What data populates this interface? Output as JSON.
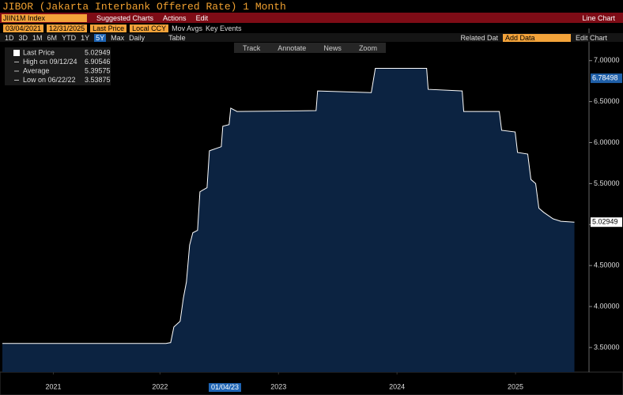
{
  "header": {
    "title": "JIBOR (Jakarta Interbank Offered Rate) 1 Month"
  },
  "toolbar": {
    "security": "JIIN1M Index",
    "suggested": "Suggested Charts",
    "actions": "Actions",
    "edit": "Edit",
    "chart_type": "Line Chart"
  },
  "settings": {
    "start": "03/04/2021",
    "end": "12/31/2025",
    "field": "Last Price",
    "currency": "Local CCY",
    "mov_avgs": "Mov Avgs",
    "key_events": "Key Events"
  },
  "periods": [
    "1D",
    "3D",
    "1M",
    "6M",
    "YTD",
    "1Y",
    "5Y",
    "Max"
  ],
  "controls": {
    "frequency": "Daily",
    "table": "Table",
    "related": "Related Dat",
    "add_data": "Add Data",
    "edit_chart": "Edit Chart"
  },
  "tools": [
    "Track",
    "Annotate",
    "News",
    "Zoom"
  ],
  "crosshair_label": "01/04/23",
  "chart_data": {
    "type": "area",
    "x": [
      2021.17,
      2022.55,
      2022.59,
      2022.617,
      2022.67,
      2022.697,
      2022.723,
      2022.75,
      2022.777,
      2022.817,
      2022.837,
      2022.897,
      2022.917,
      2023.017,
      2023.03,
      2023.083,
      2023.097,
      2023.15,
      2023.817,
      2023.83,
      2024.283,
      2024.317,
      2024.75,
      2024.763,
      2025.05,
      2025.063,
      2025.363,
      2025.383,
      2025.497,
      2025.517,
      2025.603,
      2025.63,
      2025.67,
      2025.697,
      2025.737,
      2025.817,
      2025.883,
      2025.997
    ],
    "series": [
      {
        "name": "Last Price",
        "color": "#ffffff",
        "fill": "#0c2341",
        "values": [
          3.55,
          3.55,
          3.56,
          3.75,
          3.82,
          4.1,
          4.3,
          4.75,
          4.9,
          4.93,
          5.4,
          5.45,
          5.9,
          5.95,
          6.2,
          6.22,
          6.42,
          6.38,
          6.39,
          6.63,
          6.61,
          6.90546,
          6.90546,
          6.65,
          6.63,
          6.38,
          6.38,
          6.15,
          6.13,
          5.88,
          5.86,
          5.55,
          5.5,
          5.2,
          5.15,
          5.07,
          5.04,
          5.02949
        ]
      }
    ],
    "last_value": 5.02949,
    "stats": [
      {
        "label": "High on 09/12/24",
        "value": 6.90546
      },
      {
        "label": "Average",
        "value": 5.39575
      },
      {
        "label": "Low on 06/22/22",
        "value": 3.53875
      }
    ],
    "axis_markers": [
      {
        "value": 6.78498,
        "color": "#1f5fa8"
      },
      {
        "value": 5.02949,
        "color": "#ffffff"
      }
    ],
    "xlim": [
      2021.17,
      2026.0
    ],
    "xticks": [
      {
        "value": 2021.6,
        "label": "2021"
      },
      {
        "value": 2022.5,
        "label": "2022"
      },
      {
        "value": 2023.5,
        "label": "2023"
      },
      {
        "value": 2024.5,
        "label": "2024"
      },
      {
        "value": 2025.5,
        "label": "2025"
      }
    ],
    "ylim": [
      3.2,
      7.2
    ],
    "yticks": [
      {
        "value": 3.5,
        "label": "3.50000"
      },
      {
        "value": 4,
        "label": "4.00000"
      },
      {
        "value": 4.5,
        "label": "4.50000"
      },
      {
        "value": 5,
        "label": "5.00000"
      },
      {
        "value": 5.5,
        "label": "5.50000"
      },
      {
        "value": 6,
        "label": "6.00000"
      },
      {
        "value": 6.5,
        "label": "6.50000"
      },
      {
        "value": 7,
        "label": "7.00000"
      }
    ]
  }
}
